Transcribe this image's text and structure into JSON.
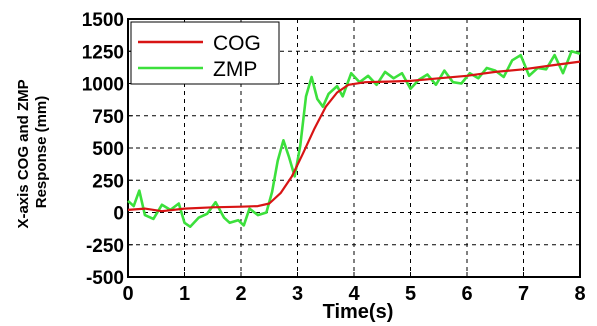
{
  "chart_data": {
    "type": "line",
    "xlabel": "Time(s)",
    "ylabel": "X-axis COG and ZMP Response (mm)",
    "xlim": [
      0,
      8
    ],
    "ylim": [
      -500,
      1500
    ],
    "xticks": [
      "0",
      "1",
      "2",
      "3",
      "4",
      "5",
      "6",
      "7",
      "8"
    ],
    "yticks": [
      "1500",
      "1250",
      "1000",
      "750",
      "500",
      "250",
      "0",
      "-250",
      "-500"
    ],
    "grid": true,
    "legend_position": "top-left",
    "series": [
      {
        "name": "COG",
        "color": "#d81414",
        "points": [
          [
            0,
            20
          ],
          [
            0.3,
            30
          ],
          [
            0.6,
            10
          ],
          [
            1.0,
            30
          ],
          [
            1.5,
            40
          ],
          [
            2.0,
            45
          ],
          [
            2.3,
            50
          ],
          [
            2.5,
            70
          ],
          [
            2.7,
            150
          ],
          [
            2.9,
            280
          ],
          [
            3.1,
            460
          ],
          [
            3.3,
            650
          ],
          [
            3.5,
            820
          ],
          [
            3.7,
            930
          ],
          [
            3.9,
            990
          ],
          [
            4.2,
            1010
          ],
          [
            4.6,
            1015
          ],
          [
            5.0,
            1020
          ],
          [
            5.5,
            1040
          ],
          [
            6.0,
            1060
          ],
          [
            6.5,
            1090
          ],
          [
            7.0,
            1110
          ],
          [
            7.5,
            1140
          ],
          [
            8.0,
            1170
          ]
        ]
      },
      {
        "name": "ZMP",
        "color": "#3ce03c",
        "points": [
          [
            0,
            90
          ],
          [
            0.1,
            50
          ],
          [
            0.2,
            170
          ],
          [
            0.3,
            -20
          ],
          [
            0.45,
            -50
          ],
          [
            0.6,
            60
          ],
          [
            0.75,
            20
          ],
          [
            0.9,
            70
          ],
          [
            1.0,
            -80
          ],
          [
            1.1,
            -110
          ],
          [
            1.25,
            -40
          ],
          [
            1.4,
            -10
          ],
          [
            1.55,
            80
          ],
          [
            1.7,
            -40
          ],
          [
            1.8,
            -80
          ],
          [
            1.95,
            -60
          ],
          [
            2.05,
            -100
          ],
          [
            2.15,
            30
          ],
          [
            2.3,
            -20
          ],
          [
            2.45,
            0
          ],
          [
            2.55,
            160
          ],
          [
            2.65,
            400
          ],
          [
            2.75,
            560
          ],
          [
            2.85,
            430
          ],
          [
            2.95,
            280
          ],
          [
            3.05,
            520
          ],
          [
            3.15,
            900
          ],
          [
            3.25,
            1050
          ],
          [
            3.35,
            880
          ],
          [
            3.45,
            820
          ],
          [
            3.55,
            920
          ],
          [
            3.7,
            980
          ],
          [
            3.8,
            900
          ],
          [
            3.95,
            1080
          ],
          [
            4.1,
            1010
          ],
          [
            4.25,
            1060
          ],
          [
            4.4,
            990
          ],
          [
            4.55,
            1090
          ],
          [
            4.7,
            1040
          ],
          [
            4.85,
            1080
          ],
          [
            5.0,
            960
          ],
          [
            5.15,
            1030
          ],
          [
            5.3,
            1070
          ],
          [
            5.45,
            990
          ],
          [
            5.6,
            1100
          ],
          [
            5.75,
            1010
          ],
          [
            5.9,
            1000
          ],
          [
            6.05,
            1080
          ],
          [
            6.2,
            1040
          ],
          [
            6.35,
            1120
          ],
          [
            6.5,
            1100
          ],
          [
            6.65,
            1050
          ],
          [
            6.8,
            1180
          ],
          [
            6.95,
            1220
          ],
          [
            7.1,
            1060
          ],
          [
            7.25,
            1120
          ],
          [
            7.4,
            1110
          ],
          [
            7.55,
            1220
          ],
          [
            7.7,
            1080
          ],
          [
            7.85,
            1250
          ],
          [
            8.0,
            1230
          ]
        ]
      }
    ]
  }
}
